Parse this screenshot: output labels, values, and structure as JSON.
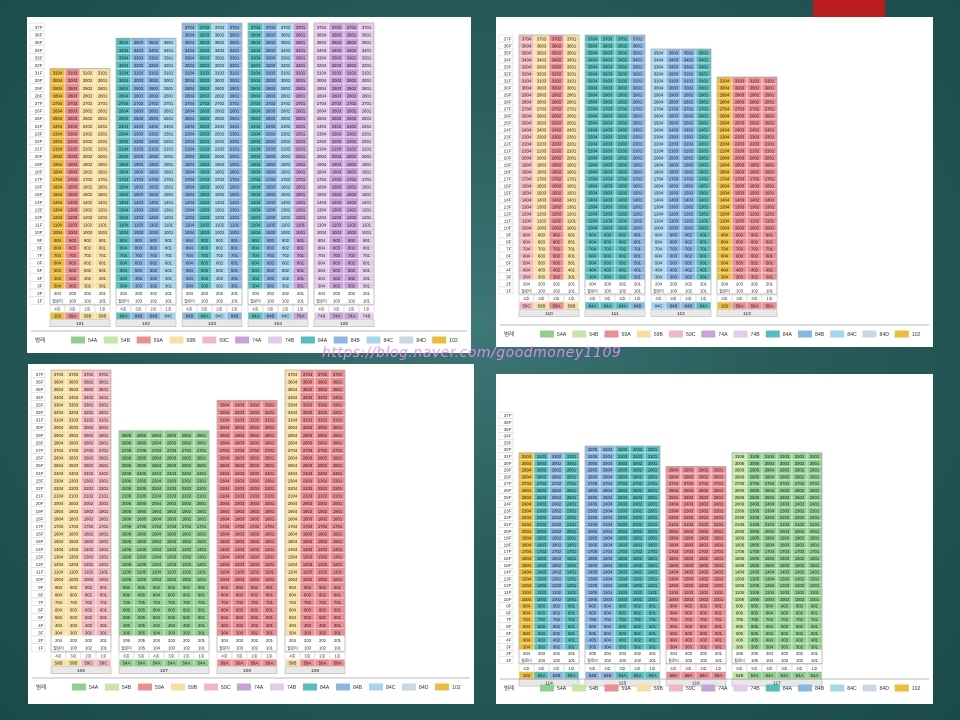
{
  "watermark": "https://blog.naver.com/goodmoney1109",
  "legend_title": "범례",
  "legend": [
    {
      "code": "54A",
      "color": "#8fcf8f"
    },
    {
      "code": "54B",
      "color": "#c5e6a4"
    },
    {
      "code": "59A",
      "color": "#ec8d92"
    },
    {
      "code": "59B",
      "color": "#f6dfa0"
    },
    {
      "code": "59C",
      "color": "#f2b8bf"
    },
    {
      "code": "74A",
      "color": "#c9a2d8"
    },
    {
      "code": "74B",
      "color": "#e4cbe9"
    },
    {
      "code": "84A",
      "color": "#56bfbd"
    },
    {
      "code": "84B",
      "color": "#8ab6e3"
    },
    {
      "code": "84C",
      "color": "#a6d6ec"
    },
    {
      "code": "84D",
      "color": "#cad8e4"
    },
    {
      "code": "102",
      "color": "#ecbc3a"
    }
  ],
  "line_labels": [
    "4호",
    "3호",
    "2호",
    "1호"
  ],
  "pilotis": "필로티",
  "panels": [
    {
      "id": "tl",
      "buildings": [
        {
          "name": "101",
          "top": 31,
          "lines": 4,
          "types": [
            "102",
            "59A",
            "59B",
            "59B"
          ]
        },
        {
          "name": "102",
          "top": 35,
          "lines": 4,
          "types": [
            "84A",
            "84B",
            "84B",
            "84C"
          ]
        },
        {
          "name": "103",
          "top": 37,
          "lines": 4,
          "types": [
            "84B",
            "84A",
            "84C",
            "84B"
          ]
        },
        {
          "name": "104",
          "top": 37,
          "lines": 4,
          "types": [
            "84A",
            "84B",
            "84C",
            "74A"
          ]
        },
        {
          "name": "105",
          "top": 37,
          "lines": 4,
          "types": [
            "74B",
            "74A",
            "74A",
            "74B"
          ]
        }
      ]
    },
    {
      "id": "tr",
      "buildings": [
        {
          "name": "110",
          "top": 37,
          "lines": 4,
          "types": [
            "59C",
            "59B",
            "59A",
            "59B"
          ]
        },
        {
          "name": "111",
          "top": 37,
          "lines": 4,
          "types": [
            "84A",
            "84A",
            "84A",
            "84B"
          ]
        },
        {
          "name": "112",
          "top": 35,
          "lines": 4,
          "types": [
            "84C",
            "84B",
            "84B",
            "84A"
          ]
        },
        {
          "name": "113",
          "top": 31,
          "lines": 4,
          "types": [
            "102",
            "59A",
            "59A",
            "59A"
          ]
        }
      ]
    },
    {
      "id": "bl",
      "buildings": [
        {
          "name": "106",
          "top": 37,
          "lines": 4,
          "types": [
            "59B",
            "59B",
            "59C",
            "59C"
          ]
        },
        {
          "name": "107",
          "top": 29,
          "lines": 6,
          "types": [
            "54A",
            "54A",
            "54A",
            "54A",
            "54A",
            "54A"
          ]
        },
        {
          "name": "108",
          "top": 33,
          "lines": 4,
          "types": [
            "59A",
            "59A",
            "59A",
            "59A"
          ]
        },
        {
          "name": "109",
          "top": 37,
          "lines": 4,
          "types": [
            "59B",
            "59A",
            "59A",
            "59A"
          ]
        }
      ]
    },
    {
      "id": "br",
      "buildings": [
        {
          "name": "114",
          "top": 31,
          "lines": 4,
          "types": [
            "102",
            "84A",
            "84B",
            "84A"
          ]
        },
        {
          "name": "115",
          "top": 32,
          "lines": 5,
          "types": [
            "84B",
            "84B",
            "84A",
            "84A",
            "84A"
          ]
        },
        {
          "name": "116",
          "top": 29,
          "lines": 4,
          "types": [
            "59A",
            "59A",
            "59A",
            "59A"
          ]
        },
        {
          "name": "117",
          "top": 31,
          "lines": 6,
          "types": [
            "54B",
            "54A",
            "54A",
            "54A",
            "54A",
            "54A"
          ]
        }
      ]
    }
  ]
}
